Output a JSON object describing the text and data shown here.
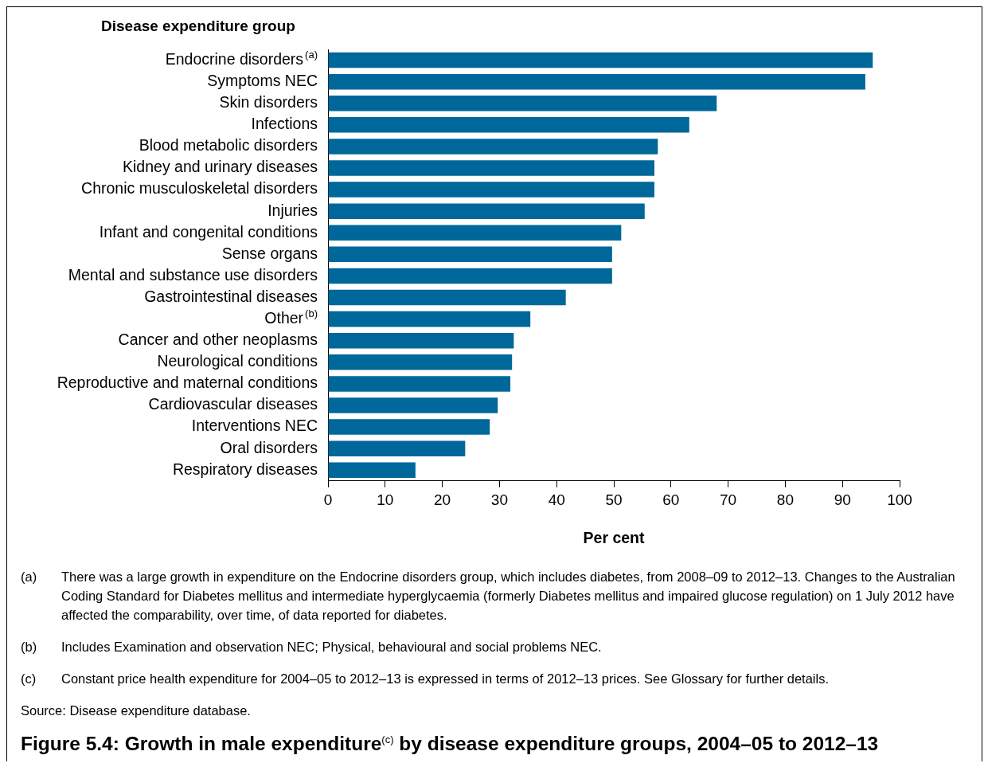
{
  "chart_data": {
    "type": "bar",
    "orientation": "horizontal",
    "title": "Figure 5.4: Growth in male expenditure$^{(c)}$ by disease expenditure groups, 2004–05 to 2012–13",
    "ylabel": "Disease expenditure group",
    "xlabel": "Per cent",
    "categories": [
      "Endocrine disorders$^{(a)}$",
      "Symptoms NEC",
      "Skin disorders",
      "Infections",
      "Blood metabolic disorders",
      "Kidney and urinary diseases",
      "Chronic musculoskeletal disorders",
      "Injuries",
      "Infant and congenital conditions",
      "Sense organs",
      "Mental and substance use disorders",
      "Gastrointestinal diseases",
      "Other$^{(b)}$",
      "Cancer and other neoplasms",
      "Neurological conditions",
      "Reproductive and maternal conditions",
      "Cardiovascular diseases",
      "Interventions NEC",
      "Oral disorders",
      "Respiratory diseases"
    ],
    "values": [
      95.3,
      94,
      68,
      63.2,
      57.7,
      57.1,
      57.1,
      55.4,
      51.3,
      49.7,
      49.7,
      41.6,
      35.4,
      32.5,
      32.2,
      31.9,
      29.7,
      28.3,
      24,
      15.3
    ],
    "color": "#00679a",
    "xlim": [
      0,
      100
    ],
    "xticks": [
      0,
      10,
      20,
      30,
      40,
      50,
      60,
      70,
      80,
      90,
      100
    ],
    "grid": false,
    "legend": false,
    "annotations": [
      "(a) There was a large growth in expenditure on the Endocrine disorders group, which includes diabetes, from 2008–09 to 2012–13. Changes to the Australian Coding Standard for Diabetes mellitus and intermediate hyperglycaemia (formerly Diabetes mellitus and impaired glucose regulation) on 1 July 2012 have affected the comparability, over time, of data reported for diabetes.",
      "(b) Includes Examination and observation NEC; Physical, behavioural and social problems NEC.",
      "(c) Constant price health expenditure for 2004–05 to 2012–13 is expressed in terms of 2012–13 prices. See Glossary for further details.",
      "Source: Disease expenditure database."
    ]
  }
}
